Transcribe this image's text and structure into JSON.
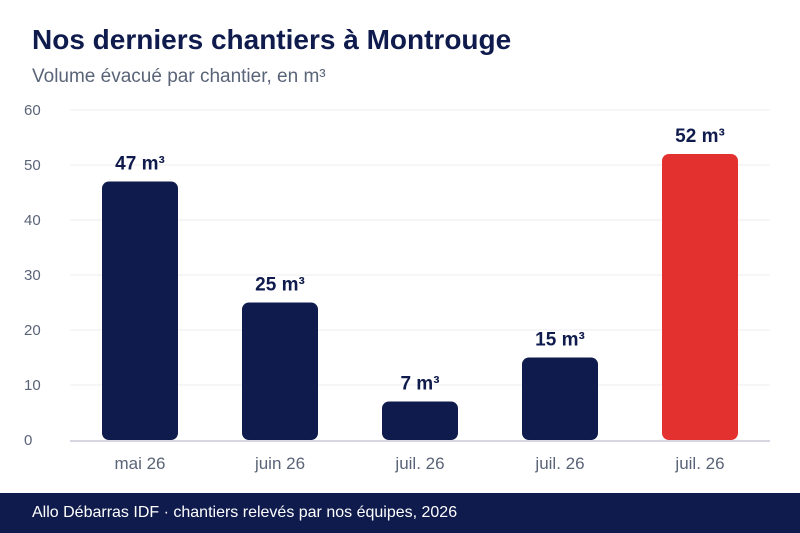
{
  "title": "Nos derniers chantiers à Montrouge",
  "subtitle": "Volume évacué par chantier, en m³",
  "footer": "Allo Débarras IDF · chantiers relevés par nos équipes, 2026",
  "chart_data": {
    "type": "bar",
    "categories": [
      "mai 26",
      "juin 26",
      "juil. 26",
      "juil. 26",
      "juil. 26"
    ],
    "values": [
      47,
      25,
      7,
      15,
      52
    ],
    "data_labels": [
      "47 m³",
      "25 m³",
      "7 m³",
      "15 m³",
      "52 m³"
    ],
    "highlight_index": 4,
    "ylim": [
      0,
      60
    ],
    "yticks": [
      "0",
      "10",
      "20",
      "30",
      "40",
      "50",
      "60"
    ],
    "grid": true,
    "colors": {
      "bar": "#0f1b4c",
      "highlight": "#e3312f",
      "grid": "#ececf0",
      "axis": "#c8cad6"
    }
  }
}
